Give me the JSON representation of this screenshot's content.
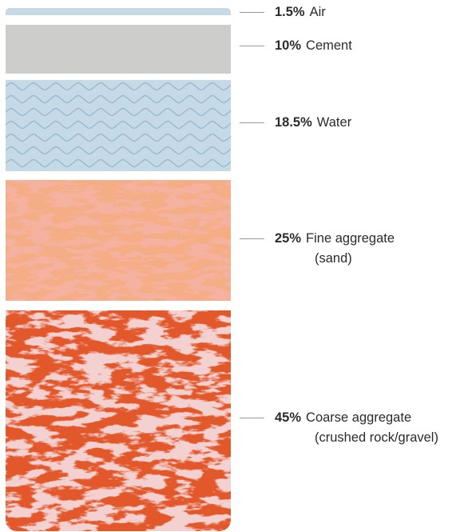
{
  "layers": [
    {
      "id": "air",
      "percent": 1.5,
      "percent_label": "1.5%",
      "name": "Air",
      "subname": "",
      "color": "#c6d9e6",
      "pattern": "solid"
    },
    {
      "id": "cement",
      "percent": 10,
      "percent_label": "10%",
      "name": "Cement",
      "subname": "",
      "color": "#cdcdcb",
      "pattern": "solid"
    },
    {
      "id": "water",
      "percent": 18.5,
      "percent_label": "18.5%",
      "name": "Water",
      "subname": "",
      "color": "#c6d9e6",
      "pattern": "waves"
    },
    {
      "id": "fine",
      "percent": 25,
      "percent_label": "25%",
      "name": "Fine aggregate",
      "subname": "(sand)",
      "color": "#f6b2a0",
      "pattern": "speckle-light"
    },
    {
      "id": "coarse",
      "percent": 45,
      "percent_label": "45%",
      "name": "Coarse aggregate",
      "subname": "(crushed rock/gravel)",
      "color": "#e2582b",
      "pattern": "speckle-dark"
    }
  ]
}
